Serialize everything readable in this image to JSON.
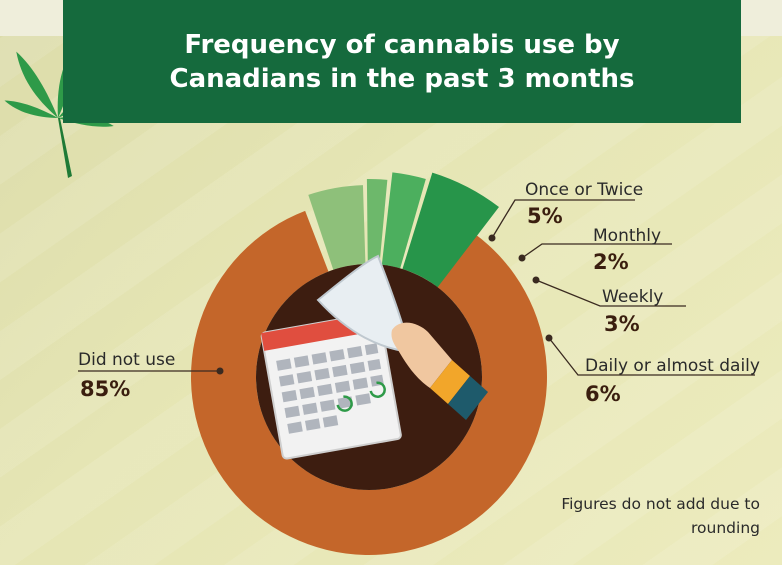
{
  "title": "Frequency of cannabis use by Canadians in the past 3 months",
  "note": "Figures do not add due to rounding",
  "colors": {
    "title_bg": "#156a3d",
    "did_not_use": "#c4662a",
    "center": "#3d1d10",
    "once_or_twice": "#8ec07a",
    "monthly": "#6db86b",
    "weekly": "#4caf5e",
    "daily": "#27954a"
  },
  "icons": [
    "cannabis-leaf-icon",
    "calendar-icon",
    "hand-icon"
  ],
  "chart_data": {
    "type": "pie",
    "categories": [
      "Did not use",
      "Once or Twice",
      "Monthly",
      "Weekly",
      "Daily or almost daily"
    ],
    "values": [
      85,
      5,
      2,
      3,
      6
    ],
    "value_labels": [
      "85%",
      "5%",
      "2%",
      "3%",
      "6%"
    ]
  }
}
